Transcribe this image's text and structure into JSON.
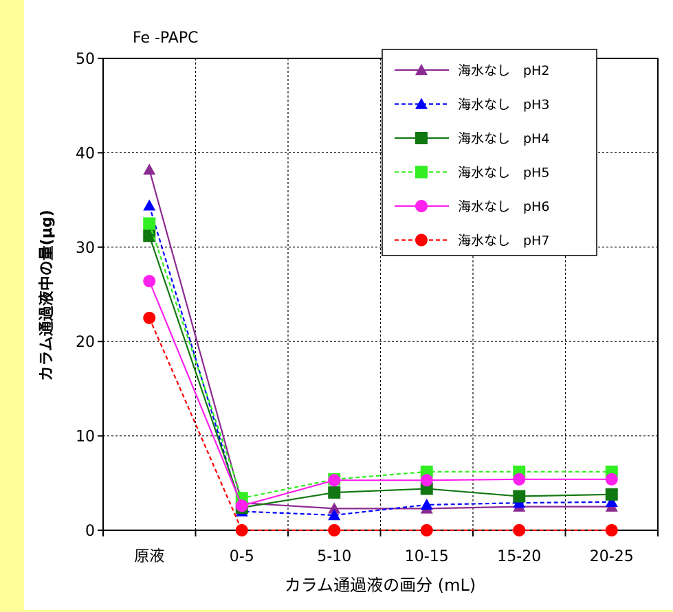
{
  "chart_data": {
    "type": "line",
    "title": "Fe -PAPC",
    "xlabel": "カラム通過液の画分 (mL)",
    "ylabel": "カラム通過液中の量(μg)",
    "categories": [
      "原液",
      "0-5",
      "5-10",
      "10-15",
      "15-20",
      "20-25"
    ],
    "ylim": [
      0,
      50
    ],
    "yticks": [
      0,
      10,
      20,
      30,
      40,
      50
    ],
    "grid": true,
    "legend_position": "top-right",
    "series": [
      {
        "name": "海水なし　pH2",
        "values": [
          38.2,
          2.9,
          2.3,
          2.3,
          2.5,
          2.5
        ],
        "color": "#8b2a91",
        "marker": "triangle",
        "dash": false
      },
      {
        "name": "海水なし　pH3",
        "values": [
          34.4,
          2.0,
          1.6,
          2.7,
          2.9,
          3.0
        ],
        "color": "#0000ff",
        "marker": "triangle",
        "dash": true
      },
      {
        "name": "海水なし　pH4",
        "values": [
          31.2,
          2.4,
          4.0,
          4.4,
          3.6,
          3.8
        ],
        "color": "#117711",
        "marker": "square",
        "dash": false
      },
      {
        "name": "海水なし　pH5",
        "values": [
          32.5,
          3.4,
          5.4,
          6.2,
          6.2,
          6.2
        ],
        "color": "#33ee22",
        "marker": "square",
        "dash": true
      },
      {
        "name": "海水なし　pH6",
        "values": [
          26.4,
          2.6,
          5.3,
          5.3,
          5.4,
          5.4
        ],
        "color": "#ff22ee",
        "marker": "circle",
        "dash": false
      },
      {
        "name": "海水なし　pH7",
        "values": [
          22.5,
          0.0,
          0.0,
          0.0,
          0.0,
          0.0
        ],
        "color": "#ff0000",
        "marker": "circle",
        "dash": true
      }
    ]
  }
}
